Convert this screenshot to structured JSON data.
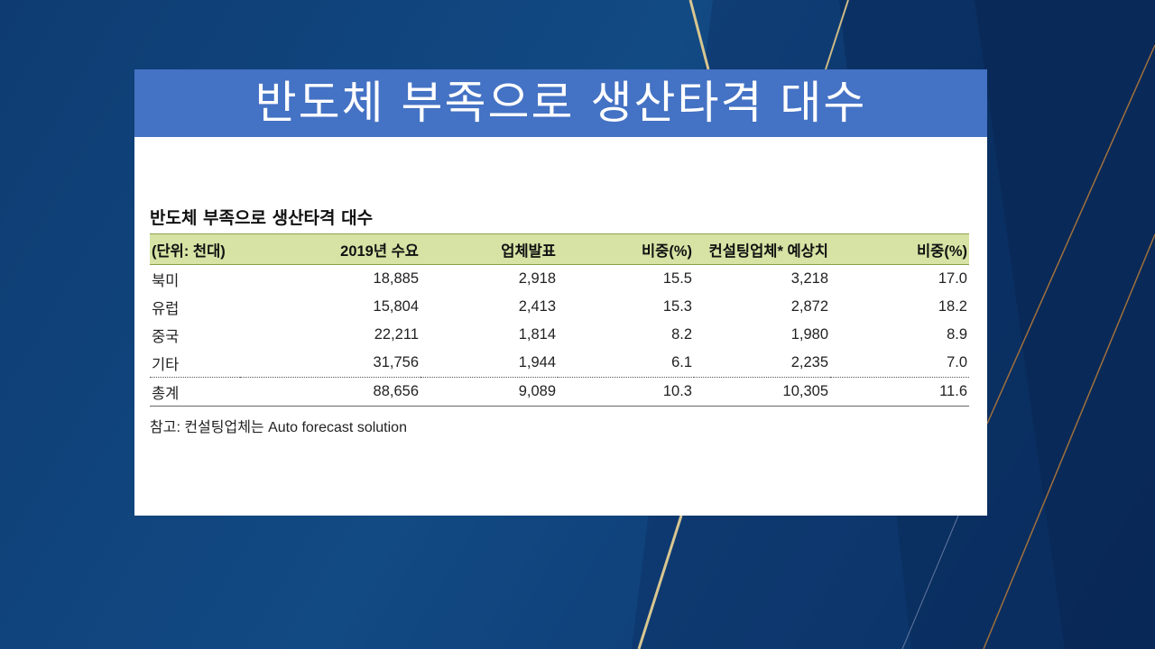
{
  "slide": {
    "title": "반도체 부족으로 생산타격 대수"
  },
  "table": {
    "title": "반도체 부족으로 생산타격 대수",
    "headers": [
      "(단위: 천대)",
      "2019년 수요",
      "업체발표",
      "비중(%)",
      "컨설팅업체* 예상치",
      "비중(%)"
    ],
    "rows": [
      [
        "북미",
        "18,885",
        "2,918",
        "15.5",
        "3,218",
        "17.0"
      ],
      [
        "유럽",
        "15,804",
        "2,413",
        "15.3",
        "2,872",
        "18.2"
      ],
      [
        "중국",
        "22,211",
        "1,814",
        "8.2",
        "1,980",
        "8.9"
      ],
      [
        "기타",
        "31,756",
        "1,944",
        "6.1",
        "2,235",
        "7.0"
      ]
    ],
    "total": [
      "총계",
      "88,656",
      "9,089",
      "10.3",
      "10,305",
      "11.6"
    ],
    "footnote": "참고: 컨설팅업체는 Auto forecast solution"
  },
  "colors": {
    "background": "#0f3f78",
    "title_bar": "#4472c4",
    "header_fill": "#d6e3a4",
    "gold_line": "#d8c690"
  }
}
